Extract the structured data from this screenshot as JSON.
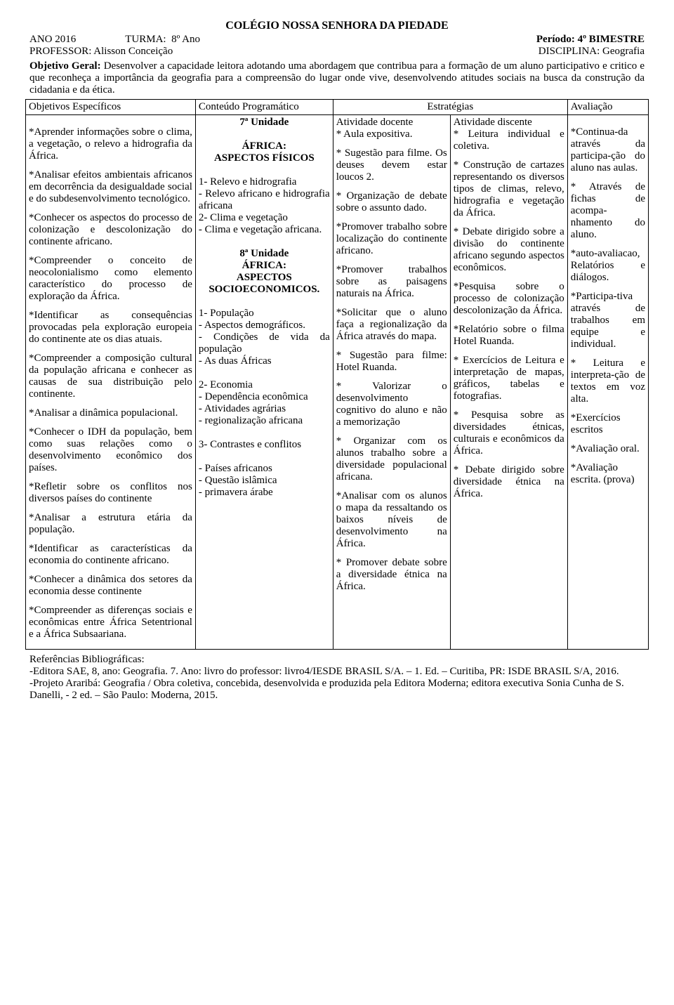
{
  "title": "COLÉGIO NOSSA SENHORA DA PIEDADE",
  "header": {
    "ano_label": "ANO 2016",
    "turma_label": "TURMA:  8º Ano",
    "periodo_label": "Período: 4º BIMESTRE",
    "professor_label": "PROFESSOR: Alisson Conceição",
    "disciplina_label": "DISCIPLINA: Geografia"
  },
  "objetivo_geral": {
    "label": "Objetivo Geral:",
    "text": " Desenvolver a capacidade leitora adotando uma abordagem que contribua para a formação de um aluno participativo e critico e que reconheça a importância da geografia para a compreensão do lugar onde vive, desenvolvendo atitudes sociais na busca da construção da cidadania e da ética."
  },
  "columns": {
    "objetivos": "Objetivos Específicos",
    "conteudo": "Conteúdo Programático",
    "estrategias": "Estratégias",
    "avaliacao": "Avaliação"
  },
  "objetivos_especificos": [
    "*Aprender informações sobre o clima, a vegetação, o relevo a hidrografia da África.",
    "*Analisar efeitos ambientais africanos em decorrência da desigualdade social e do subdesenvolvimento tecnológico.",
    "*Conhecer os aspectos do processo de colonização e descolonização do continente africano.",
    "*Compreender o conceito de neocolonialismo como elemento característico do processo de exploração da África.",
    "*Identificar as consequências provocadas pela exploração europeia do continente ate os dias atuais.",
    "*Compreender a composição cultural da população africana e conhecer as causas de sua distribuição pelo continente.",
    "*Analisar a dinâmica populacional.",
    "*Conhecer o IDH da população, bem como suas relações como o desenvolvimento econômico dos países.",
    "*Refletir sobre os conflitos nos diversos países do continente",
    "*Analisar a estrutura etária da população.",
    "*Identificar as características da economia do continente africano.",
    "*Conhecer a dinâmica dos setores da economia desse continente",
    "*Compreender as diferenças sociais e econômicas entre África Setentrional e a África Subsaariana."
  ],
  "conteudo": {
    "u7_title": "7ª Unidade",
    "u7_sub1": "ÁFRICA:",
    "u7_sub2": "ASPECTOS FÍSICOS",
    "u7_items": [
      "1- Relevo e hidrografia",
      "- Relevo africano e hidrografia africana",
      "2- Clima e vegetação",
      "- Clima e vegetação africana."
    ],
    "u8_title": "8ª Unidade",
    "u8_sub1": "ÁFRICA:",
    "u8_sub2": "ASPECTOS SOCIOECONOMICOS.",
    "u8_items": [
      "1- População",
      "- Aspectos demográficos.",
      "- Condições de vida da população",
      "- As duas Áfricas",
      "",
      "2- Economia",
      "- Dependência econômica",
      "- Atividades agrárias",
      "- regionalização africana",
      "",
      "3- Contrastes e conflitos",
      "",
      "- Países africanos",
      "- Questão islâmica",
      "- primavera árabe"
    ]
  },
  "docente": {
    "title": "Atividade docente",
    "items": [
      "* Aula expositiva.",
      "* Sugestão para filme. Os deuses devem estar loucos 2.",
      "* Organização de debate sobre o assunto dado.",
      "*Promover trabalho sobre localização do continente africano.",
      "*Promover trabalhos sobre as paisagens naturais na África.",
      "*Solicitar que o aluno faça a regionalização da África através do mapa.",
      "* Sugestão para filme: Hotel Ruanda.",
      "* Valorizar o desenvolvimento cognitivo do aluno e não a memorização",
      "* Organizar com os alunos trabalho sobre a diversidade populacional africana.",
      "*Analisar com os alunos o mapa da ressaltando os baixos níveis de desenvolvimento na África.",
      "* Promover debate sobre a diversidade étnica na África."
    ]
  },
  "discente": {
    "title": "Atividade discente",
    "items": [
      "* Leitura individual e coletiva.",
      "* Construção de cartazes representando os diversos tipos de climas, relevo, hidrografia e vegetação da África.",
      "* Debate dirigido sobre a divisão do continente africano segundo aspectos econômicos.",
      "*Pesquisa sobre o processo de colonização descolonização da África.",
      "*Relatório sobre o filma Hotel Ruanda.",
      "* Exercícios de Leitura e interpretação de mapas, gráficos, tabelas e fotografias.",
      "* Pesquisa sobre as diversidades étnicas, culturais e econômicos da África.",
      "* Debate dirigido sobre diversidade étnica na África."
    ]
  },
  "avaliacao": [
    "*Continua-da através da participa-ção do aluno nas aulas.",
    "* Através de fichas de acompa-nhamento do aluno.",
    "*auto-avaliacao, Relatórios e diálogos.",
    "*Participa-tiva através de trabalhos em equipe e individual.",
    "* Leitura e interpreta-ção de textos em voz alta.",
    "*Exercícios escritos",
    "*Avaliação oral.",
    "*Avaliação escrita. (prova)"
  ],
  "referencias": {
    "label": "Referências Bibliográficas:",
    "items": [
      "-Editora SAE, 8, ano: Geografia. 7. Ano: livro do professor: livro4/IESDE BRASIL S/A. – 1. Ed. – Curitiba, PR: ISDE BRASIL S/A, 2016.",
      "-Projeto Araribá: Geografia / Obra coletiva, concebida, desenvolvida e produzida pela Editora Moderna; editora executiva Sonia Cunha de S. Danelli, - 2 ed. – São Paulo: Moderna, 2015."
    ]
  }
}
